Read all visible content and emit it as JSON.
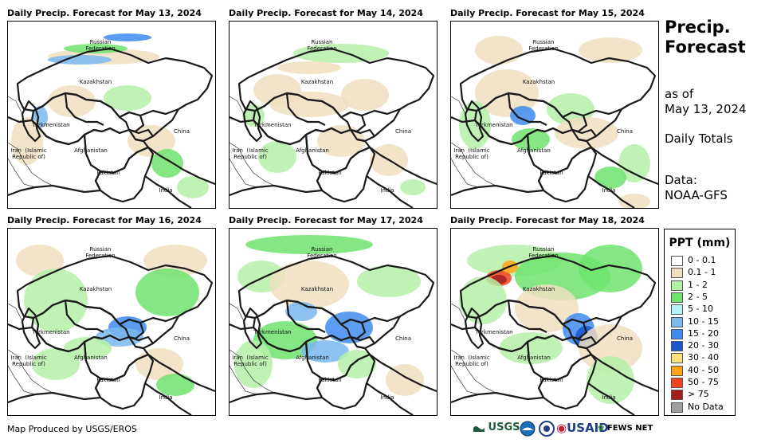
{
  "panels": [
    {
      "title": "Daily Precip. Forecast for May 13, 2024"
    },
    {
      "title": "Daily Precip. Forecast for May 14, 2024"
    },
    {
      "title": "Daily Precip. Forecast for May 15, 2024"
    },
    {
      "title": "Daily Precip. Forecast for May 16, 2024"
    },
    {
      "title": "Daily Precip. Forecast for May 17, 2024"
    },
    {
      "title": "Daily Precip. Forecast for May 18, 2024"
    }
  ],
  "map_labels": {
    "russia": "Russian\nFederation",
    "kazakhstan": "Kazakhstan",
    "turkmenistan": "Turkmenistan",
    "china": "China",
    "iran": "Iran  (Islamic\nRepublic of)",
    "afghanistan": "Afghanistan",
    "pakistan": "Pakistan",
    "india": "India"
  },
  "side": {
    "title": "Precip.\nForecast",
    "as_of": "as of",
    "date": "May 13, 2024",
    "totals": "Daily Totals",
    "data_label": "Data:",
    "data_source": "NOAA-GFS"
  },
  "legend": {
    "title": "PPT (mm)",
    "items": [
      {
        "label": "0 - 0.1",
        "color": "#ffffff"
      },
      {
        "label": "0.1 - 1",
        "color": "#efdfc0"
      },
      {
        "label": "1 - 2",
        "color": "#b5f0a8"
      },
      {
        "label": "2 - 5",
        "color": "#6fe36e"
      },
      {
        "label": "5 - 10",
        "color": "#b3f3f5"
      },
      {
        "label": "10 - 15",
        "color": "#7ab9ee"
      },
      {
        "label": "15 - 20",
        "color": "#3f8cee"
      },
      {
        "label": "20 - 30",
        "color": "#1c56cf"
      },
      {
        "label": "30 - 40",
        "color": "#ffe27a"
      },
      {
        "label": "40 - 50",
        "color": "#ffa514"
      },
      {
        "label": "50 - 75",
        "color": "#f2421e"
      },
      {
        "label": "> 75",
        "color": "#a21d1d"
      },
      {
        "label": "No Data",
        "color": "#9e9e9e"
      }
    ]
  },
  "footer": {
    "credit": "Map Produced by USGS/EROS"
  },
  "logos": [
    {
      "name": "usgs-logo",
      "text": "USGS"
    },
    {
      "name": "noaa-logo",
      "text": "NOAA"
    },
    {
      "name": "usaid-logo",
      "text": "USAID"
    },
    {
      "name": "fewsnet-logo",
      "text": "FEWS NET"
    }
  ]
}
